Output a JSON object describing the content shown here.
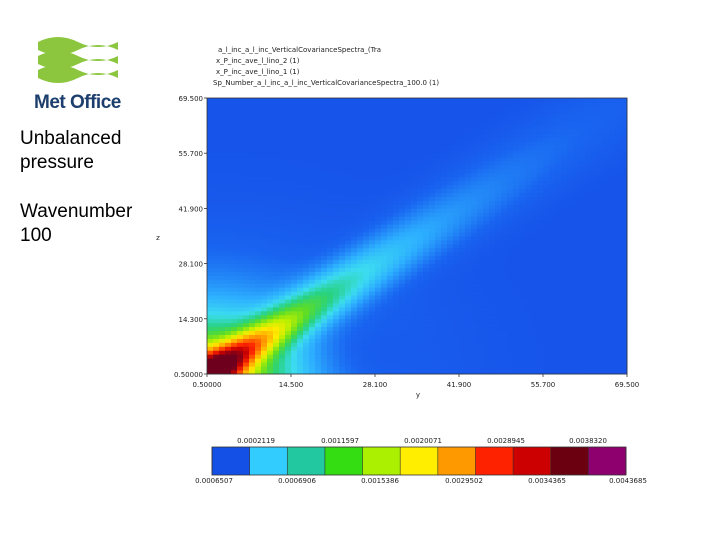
{
  "logo": {
    "name": "Met Office",
    "colors": {
      "green": "#8cc63f",
      "navy": "#1d3f6e"
    }
  },
  "sidebar": {
    "variable_lines": [
      "Unbalanced",
      "pressure"
    ],
    "wavenumber_lines": [
      "Wavenumber",
      "100"
    ]
  },
  "chart_data": {
    "type": "heatmap",
    "header_lines": [
      "a_l_inc_a_l_inc_VerticalCovarianceSpectra_(Tra",
      "x_P_inc_ave_l_lino_2 (1)",
      "x_P_inc_ave_l_lino_1 (1)",
      "Sp_Number_a_l_inc_a_l_inc_VerticalCovarianceSpectra_100.0 (1)"
    ],
    "xlabel": "y",
    "ylabel": "z",
    "x_ticks": [
      "0.50000",
      "14.500",
      "28.100",
      "41.900",
      "55.700",
      "69.500"
    ],
    "y_ticks": [
      "0.50000",
      "14.300",
      "28.100",
      "41.900",
      "55.700",
      "69.500"
    ],
    "xlim": [
      0.5,
      69.5
    ],
    "ylim": [
      0.5,
      69.5
    ],
    "colorbar": {
      "top_labels": [
        "0.0002119",
        "0.0011597",
        "0.0020071",
        "0.0028945",
        "0.0038320"
      ],
      "bottom_labels": [
        "0.0006507",
        "0.0006906",
        "0.0015386",
        "0.0029502",
        "0.0034365",
        "0.0043685"
      ],
      "colors": [
        "#1450e6",
        "#33ccff",
        "#22c8a0",
        "#33dd11",
        "#aaf000",
        "#ffee00",
        "#ff9900",
        "#ff2200",
        "#cc0000",
        "#6a0010",
        "#8e006e"
      ]
    }
  }
}
